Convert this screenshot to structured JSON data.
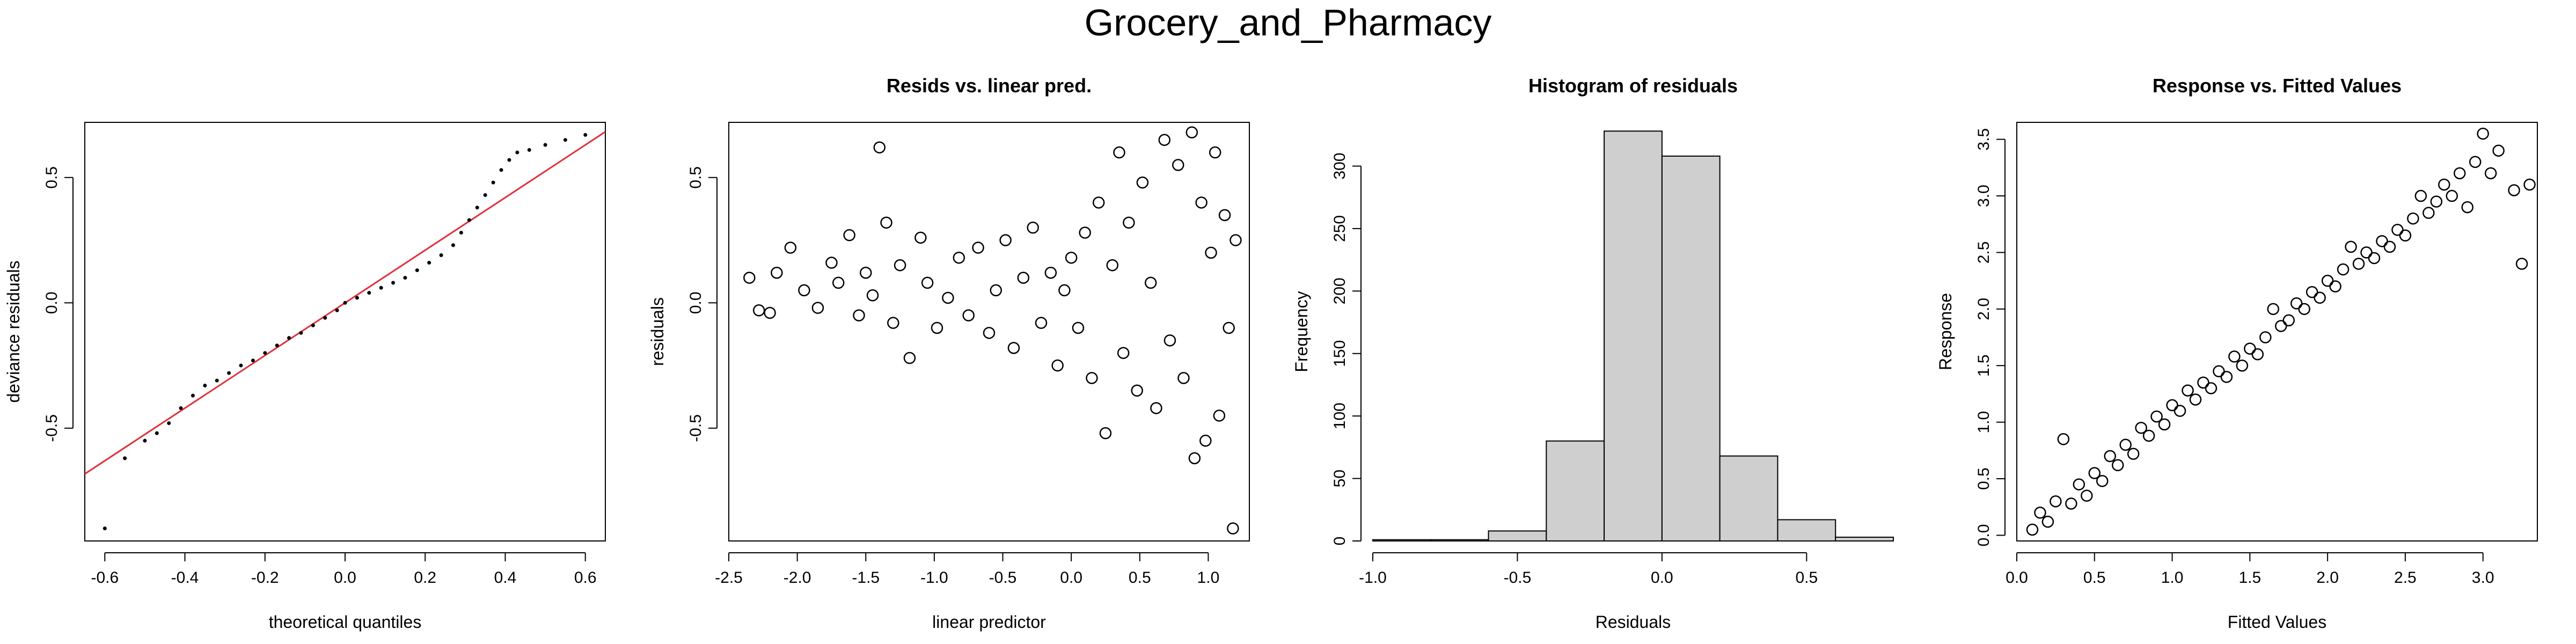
{
  "figure": {
    "title": "Grocery_and_Pharmacy"
  },
  "chart_data": [
    {
      "type": "scatter",
      "title": "",
      "xlabel": "theoretical quantiles",
      "ylabel": "deviance residuals",
      "xlim": [
        -0.65,
        0.65
      ],
      "ylim": [
        -0.95,
        0.72
      ],
      "xticks": [
        "-0.6",
        "-0.4",
        "-0.2",
        "0.0",
        "0.2",
        "0.4",
        "0.6"
      ],
      "yticks": [
        "-0.5",
        "0.0",
        "0.5"
      ],
      "reference_line": {
        "color": "#E0303A",
        "slope": 1.05,
        "intercept": 0.0
      },
      "points": [
        [
          -0.6,
          -0.9
        ],
        [
          -0.55,
          -0.62
        ],
        [
          -0.5,
          -0.55
        ],
        [
          -0.47,
          -0.52
        ],
        [
          -0.44,
          -0.48
        ],
        [
          -0.41,
          -0.42
        ],
        [
          -0.38,
          -0.37
        ],
        [
          -0.35,
          -0.33
        ],
        [
          -0.32,
          -0.31
        ],
        [
          -0.29,
          -0.28
        ],
        [
          -0.26,
          -0.25
        ],
        [
          -0.23,
          -0.23
        ],
        [
          -0.2,
          -0.2
        ],
        [
          -0.17,
          -0.17
        ],
        [
          -0.14,
          -0.14
        ],
        [
          -0.11,
          -0.12
        ],
        [
          -0.08,
          -0.09
        ],
        [
          -0.05,
          -0.06
        ],
        [
          -0.02,
          -0.03
        ],
        [
          0.0,
          0.0
        ],
        [
          0.03,
          0.02
        ],
        [
          0.06,
          0.04
        ],
        [
          0.09,
          0.06
        ],
        [
          0.12,
          0.08
        ],
        [
          0.15,
          0.1
        ],
        [
          0.18,
          0.13
        ],
        [
          0.21,
          0.16
        ],
        [
          0.24,
          0.19
        ],
        [
          0.27,
          0.23
        ],
        [
          0.29,
          0.28
        ],
        [
          0.31,
          0.33
        ],
        [
          0.33,
          0.38
        ],
        [
          0.35,
          0.43
        ],
        [
          0.37,
          0.48
        ],
        [
          0.39,
          0.53
        ],
        [
          0.41,
          0.57
        ],
        [
          0.43,
          0.6
        ],
        [
          0.46,
          0.61
        ],
        [
          0.5,
          0.63
        ],
        [
          0.55,
          0.65
        ],
        [
          0.6,
          0.67
        ]
      ]
    },
    {
      "type": "scatter",
      "title": "Resids vs. linear pred.",
      "xlabel": "linear predictor",
      "ylabel": "residuals",
      "xlim": [
        -2.5,
        1.3
      ],
      "ylim": [
        -0.95,
        0.72
      ],
      "xticks": [
        "-2.5",
        "-2.0",
        "-1.5",
        "-1.0",
        "-0.5",
        "0.0",
        "0.5",
        "1.0"
      ],
      "yticks": [
        "-0.5",
        "0.0",
        "0.5"
      ],
      "points": [
        [
          -2.35,
          0.1
        ],
        [
          -2.28,
          -0.03
        ],
        [
          -2.2,
          -0.04
        ],
        [
          -2.15,
          0.12
        ],
        [
          -2.05,
          0.22
        ],
        [
          -1.95,
          0.05
        ],
        [
          -1.85,
          -0.02
        ],
        [
          -1.75,
          0.16
        ],
        [
          -1.7,
          0.08
        ],
        [
          -1.62,
          0.27
        ],
        [
          -1.55,
          -0.05
        ],
        [
          -1.5,
          0.12
        ],
        [
          -1.45,
          0.03
        ],
        [
          -1.4,
          0.62
        ],
        [
          -1.35,
          0.32
        ],
        [
          -1.3,
          -0.08
        ],
        [
          -1.25,
          0.15
        ],
        [
          -1.18,
          -0.22
        ],
        [
          -1.1,
          0.26
        ],
        [
          -1.05,
          0.08
        ],
        [
          -0.98,
          -0.1
        ],
        [
          -0.9,
          0.02
        ],
        [
          -0.82,
          0.18
        ],
        [
          -0.75,
          -0.05
        ],
        [
          -0.68,
          0.22
        ],
        [
          -0.6,
          -0.12
        ],
        [
          -0.55,
          0.05
        ],
        [
          -0.48,
          0.25
        ],
        [
          -0.42,
          -0.18
        ],
        [
          -0.35,
          0.1
        ],
        [
          -0.28,
          0.3
        ],
        [
          -0.22,
          -0.08
        ],
        [
          -0.15,
          0.12
        ],
        [
          -0.1,
          -0.25
        ],
        [
          -0.05,
          0.05
        ],
        [
          0.0,
          0.18
        ],
        [
          0.05,
          -0.1
        ],
        [
          0.1,
          0.28
        ],
        [
          0.15,
          -0.3
        ],
        [
          0.2,
          0.4
        ],
        [
          0.25,
          -0.52
        ],
        [
          0.3,
          0.15
        ],
        [
          0.35,
          0.6
        ],
        [
          0.38,
          -0.2
        ],
        [
          0.42,
          0.32
        ],
        [
          0.48,
          -0.35
        ],
        [
          0.52,
          0.48
        ],
        [
          0.58,
          0.08
        ],
        [
          0.62,
          -0.42
        ],
        [
          0.68,
          0.65
        ],
        [
          0.72,
          -0.15
        ],
        [
          0.78,
          0.55
        ],
        [
          0.82,
          -0.3
        ],
        [
          0.88,
          0.68
        ],
        [
          0.9,
          -0.62
        ],
        [
          0.95,
          0.4
        ],
        [
          0.98,
          -0.55
        ],
        [
          1.02,
          0.2
        ],
        [
          1.05,
          0.6
        ],
        [
          1.08,
          -0.45
        ],
        [
          1.12,
          0.35
        ],
        [
          1.15,
          -0.1
        ],
        [
          1.18,
          -0.9
        ],
        [
          1.2,
          0.25
        ]
      ]
    },
    {
      "type": "bar",
      "title": "Histogram of residuals",
      "xlabel": "Residuals",
      "ylabel": "Frequency",
      "bin_edges": [
        -1.0,
        -0.8,
        -0.6,
        -0.4,
        -0.2,
        0.0,
        0.2,
        0.4,
        0.6,
        0.8
      ],
      "values": [
        1,
        1,
        8,
        80,
        328,
        308,
        68,
        17,
        3
      ],
      "xlim": [
        -1.0,
        0.8
      ],
      "ylim": [
        0,
        335
      ],
      "xticks": [
        "-1.0",
        "-0.5",
        "0.0",
        "0.5"
      ],
      "yticks": [
        "0",
        "50",
        "100",
        "150",
        "200",
        "250",
        "300"
      ],
      "bar_color": "#CFCFCF"
    },
    {
      "type": "scatter",
      "title": "Response vs. Fitted Values",
      "xlabel": "Fitted Values",
      "ylabel": "Response",
      "xlim": [
        0.0,
        3.35
      ],
      "ylim": [
        -0.05,
        3.65
      ],
      "xticks": [
        "0.0",
        "0.5",
        "1.0",
        "1.5",
        "2.0",
        "2.5",
        "3.0"
      ],
      "yticks": [
        "0.0",
        "0.5",
        "1.0",
        "1.5",
        "2.0",
        "2.5",
        "3.0",
        "3.5"
      ],
      "points": [
        [
          0.1,
          0.05
        ],
        [
          0.15,
          0.2
        ],
        [
          0.2,
          0.12
        ],
        [
          0.25,
          0.3
        ],
        [
          0.3,
          0.85
        ],
        [
          0.35,
          0.28
        ],
        [
          0.4,
          0.45
        ],
        [
          0.45,
          0.35
        ],
        [
          0.5,
          0.55
        ],
        [
          0.55,
          0.48
        ],
        [
          0.6,
          0.7
        ],
        [
          0.65,
          0.62
        ],
        [
          0.7,
          0.8
        ],
        [
          0.75,
          0.72
        ],
        [
          0.8,
          0.95
        ],
        [
          0.85,
          0.88
        ],
        [
          0.9,
          1.05
        ],
        [
          0.95,
          0.98
        ],
        [
          1.0,
          1.15
        ],
        [
          1.05,
          1.1
        ],
        [
          1.1,
          1.28
        ],
        [
          1.15,
          1.2
        ],
        [
          1.2,
          1.35
        ],
        [
          1.25,
          1.3
        ],
        [
          1.3,
          1.45
        ],
        [
          1.35,
          1.4
        ],
        [
          1.4,
          1.58
        ],
        [
          1.45,
          1.5
        ],
        [
          1.5,
          1.65
        ],
        [
          1.55,
          1.6
        ],
        [
          1.6,
          1.75
        ],
        [
          1.65,
          2.0
        ],
        [
          1.7,
          1.85
        ],
        [
          1.75,
          1.9
        ],
        [
          1.8,
          2.05
        ],
        [
          1.85,
          2.0
        ],
        [
          1.9,
          2.15
        ],
        [
          1.95,
          2.1
        ],
        [
          2.0,
          2.25
        ],
        [
          2.05,
          2.2
        ],
        [
          2.1,
          2.35
        ],
        [
          2.15,
          2.55
        ],
        [
          2.2,
          2.4
        ],
        [
          2.25,
          2.5
        ],
        [
          2.3,
          2.45
        ],
        [
          2.35,
          2.6
        ],
        [
          2.4,
          2.55
        ],
        [
          2.45,
          2.7
        ],
        [
          2.5,
          2.65
        ],
        [
          2.55,
          2.8
        ],
        [
          2.6,
          3.0
        ],
        [
          2.65,
          2.85
        ],
        [
          2.7,
          2.95
        ],
        [
          2.75,
          3.1
        ],
        [
          2.8,
          3.0
        ],
        [
          2.85,
          3.2
        ],
        [
          2.9,
          2.9
        ],
        [
          2.95,
          3.3
        ],
        [
          3.0,
          3.55
        ],
        [
          3.05,
          3.2
        ],
        [
          3.1,
          3.4
        ],
        [
          3.2,
          3.05
        ],
        [
          3.25,
          2.4
        ],
        [
          3.3,
          3.1
        ]
      ]
    }
  ]
}
